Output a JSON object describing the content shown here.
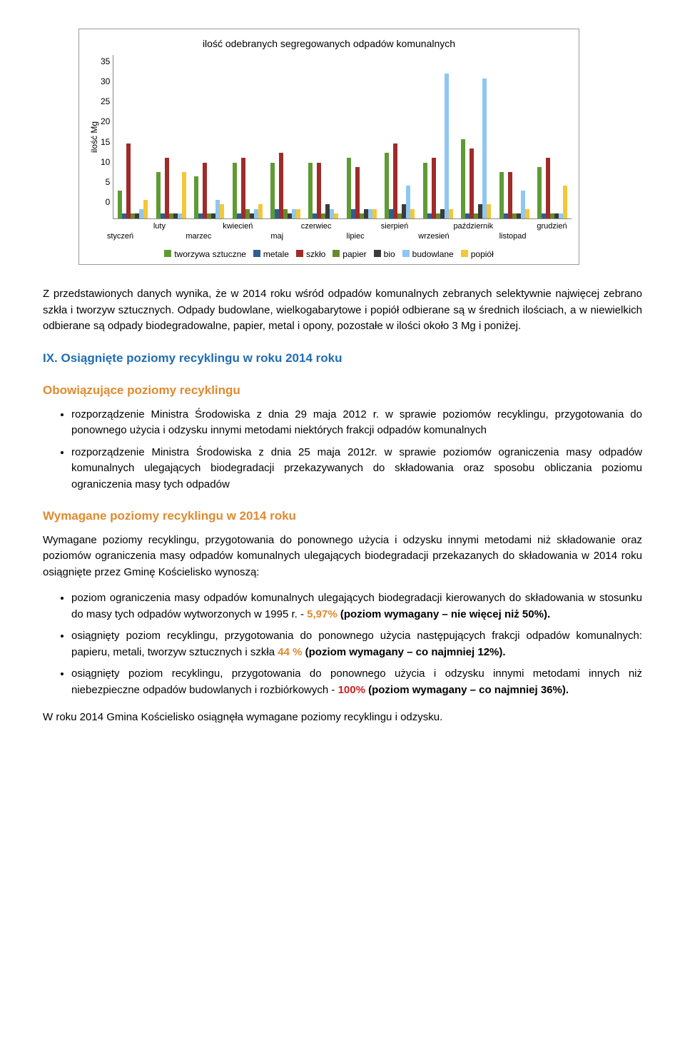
{
  "chart": {
    "title": "ilość odebranych segregowanych odpadów komunalnych",
    "y_label": "ilość Mg",
    "y_ticks": [
      "35",
      "30",
      "25",
      "20",
      "15",
      "10",
      "5",
      "0"
    ],
    "y_max": 35,
    "months_top": [
      "luty",
      "kwiecień",
      "czerwiec",
      "sierpień",
      "październik",
      "grudzień"
    ],
    "months_bot": [
      "styczeń",
      "marzec",
      "maj",
      "lipiec",
      "wrzesień",
      "listopad"
    ],
    "months": [
      "styczeń",
      "luty",
      "marzec",
      "kwiecień",
      "maj",
      "czerwiec",
      "lipiec",
      "sierpień",
      "wrzesień",
      "październik",
      "listopad",
      "grudzień"
    ],
    "series": [
      {
        "name": "tworzywa sztuczne",
        "color": "#5f9b34"
      },
      {
        "name": "metale",
        "color": "#2f5e8f"
      },
      {
        "name": "szkło",
        "color": "#a02b2b"
      },
      {
        "name": "papier",
        "color": "#6a8a2a"
      },
      {
        "name": "bio",
        "color": "#3b3b3b"
      },
      {
        "name": "budowlane",
        "color": "#8fc7f0"
      },
      {
        "name": "popiół",
        "color": "#f2c83a"
      }
    ],
    "data": [
      [
        6,
        1,
        16,
        1,
        1,
        2,
        4
      ],
      [
        10,
        1,
        13,
        1,
        1,
        1,
        10
      ],
      [
        9,
        1,
        12,
        1,
        1,
        4,
        3
      ],
      [
        12,
        1,
        13,
        2,
        1,
        2,
        3
      ],
      [
        12,
        2,
        14,
        2,
        1,
        2,
        2
      ],
      [
        12,
        1,
        12,
        1,
        3,
        2,
        1
      ],
      [
        13,
        2,
        11,
        1,
        2,
        2,
        2
      ],
      [
        14,
        2,
        16,
        1,
        3,
        7,
        2
      ],
      [
        12,
        1,
        13,
        1,
        2,
        31,
        2
      ],
      [
        17,
        1,
        15,
        1,
        3,
        30,
        3
      ],
      [
        10,
        1,
        10,
        1,
        1,
        6,
        2
      ],
      [
        11,
        1,
        13,
        1,
        1,
        1,
        7
      ]
    ]
  },
  "para1": "Z przedstawionych danych wynika, że w 2014 roku wśród odpadów komunalnych zebranych selektywnie najwięcej zebrano szkła i tworzyw sztucznych. Odpady budowlane, wielkogabarytowe i popiół odbierane są w średnich ilościach, a w niewielkich odbierane są odpady biodegradowalne, papier, metal i opony, pozostałe w ilości około 3 Mg i poniżej.",
  "h2_ix": "IX. Osiągnięte poziomy recyklingu w roku 2014 roku",
  "h3_obow": "Obowiązujące poziomy recyklingu",
  "bullets1": [
    "rozporządzenie Ministra Środowiska z dnia 29 maja 2012 r. w sprawie poziomów recyklingu, przygotowania do ponownego użycia i odzysku innymi metodami niektórych frakcji odpadów komunalnych",
    "rozporządzenie Ministra Środowiska z dnia 25 maja 2012r. w sprawie poziomów ograniczenia masy odpadów komunalnych ulegających biodegradacji przekazywanych do składowania oraz sposobu obliczania poziomu ograniczenia masy tych odpadów"
  ],
  "h3_wym": "Wymagane poziomy recyklingu w 2014 roku",
  "para2": "Wymagane poziomy recyklingu, przygotowania do ponownego użycia i odzysku innymi metodami niż składowanie oraz poziomów ograniczenia masy odpadów komunalnych ulegających biodegradacji przekazanych do składowania w 2014 roku osiągnięte przez Gminę Kościelisko wynoszą:",
  "bullets2": [
    {
      "pre": "poziom ograniczenia masy odpadów komunalnych ulegających biodegradacji kierowanych do składowania w stosunku do masy tych odpadów wytworzonych w 1995 r. - ",
      "hl": "5,97%",
      "hl_class": "hl-orange",
      "post": " (poziom wymagany – nie więcej niż 50%).",
      "post_bold": true
    },
    {
      "pre": "osiągnięty poziom recyklingu, przygotowania do ponownego użycia następujących frakcji odpadów komunalnych: papieru, metali, tworzyw sztucznych i szkła ",
      "hl": "44 %",
      "hl_class": "hl-orange",
      "post": " (poziom wymagany – co najmniej 12%).",
      "post_bold": true
    },
    {
      "pre": "osiągnięty poziom recyklingu, przygotowania do ponownego użycia i odzysku innymi metodami innych niż niebezpieczne odpadów budowlanych i rozbiórkowych - ",
      "hl": "100%",
      "hl_class": "hl-red",
      "post": " (poziom wymagany – co najmniej 36%).",
      "post_bold": true
    }
  ],
  "para3": "W roku 2014 Gmina Kościelisko osiągnęła wymagane poziomy recyklingu i odzysku."
}
